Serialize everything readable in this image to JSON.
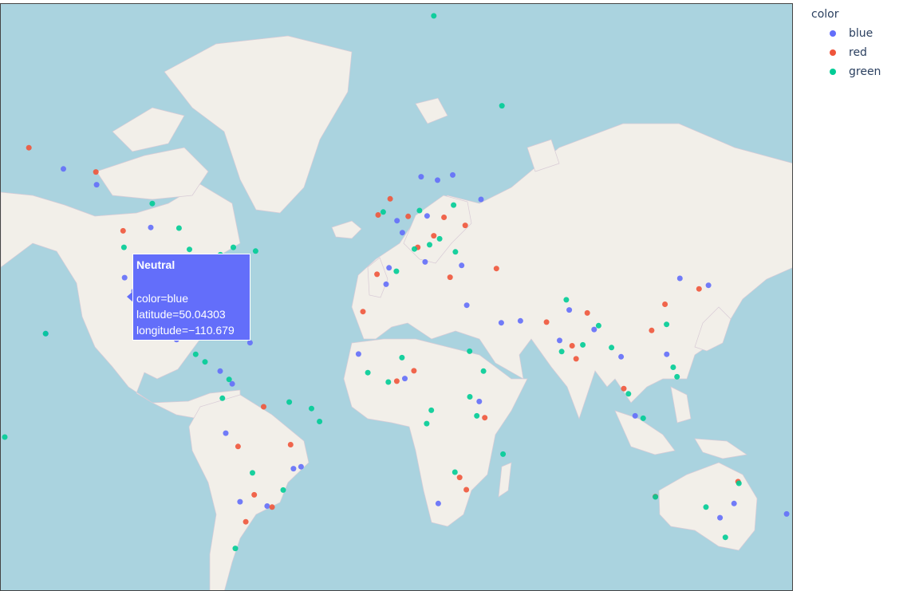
{
  "legend": {
    "title": "color",
    "items": [
      {
        "label": "blue",
        "color": "#636efa"
      },
      {
        "label": "red",
        "color": "#ef553b"
      },
      {
        "label": "green",
        "color": "#00cc96"
      }
    ]
  },
  "tooltip": {
    "title": "Neutral",
    "line1": "color=blue",
    "line2": "latitude=50.04303",
    "line3": "longitude=−110.679"
  },
  "chart_data": {
    "type": "scatter",
    "map_style": "open-street-map",
    "x_name": "longitude",
    "y_name": "latitude",
    "series": [
      {
        "name": "blue",
        "color": "#636efa",
        "points": [
          [
            -110.679,
            50.04
          ],
          [
            -118.2,
            34.1
          ],
          [
            -87.6,
            41.9
          ],
          [
            -74.0,
            40.7
          ],
          [
            -122.4,
            37.8
          ],
          [
            -96.8,
            32.8
          ],
          [
            -80.2,
            25.8
          ],
          [
            -99.1,
            19.4
          ],
          [
            -58.4,
            -34.6
          ],
          [
            -46.6,
            -23.5
          ],
          [
            -70.6,
            -33.4
          ],
          [
            -77.0,
            -12.0
          ],
          [
            -43.2,
            -22.9
          ],
          [
            -0.1,
            51.5
          ],
          [
            2.3,
            48.9
          ],
          [
            13.4,
            52.5
          ],
          [
            12.5,
            41.9
          ],
          [
            -3.7,
            40.4
          ],
          [
            37.6,
            55.8
          ],
          [
            28.9,
            41.0
          ],
          [
            31.2,
            30.0
          ],
          [
            77.2,
            28.6
          ],
          [
            72.9,
            19.1
          ],
          [
            88.4,
            22.6
          ],
          [
            100.5,
            13.8
          ],
          [
            106.8,
            -6.2
          ],
          [
            121.0,
            14.6
          ],
          [
            139.7,
            35.7
          ],
          [
            151.2,
            -33.9
          ],
          [
            144.9,
            -37.8
          ],
          [
            18.4,
            -33.9
          ],
          [
            3.4,
            6.5
          ],
          [
            36.8,
            -1.3
          ],
          [
            -5.0,
            36.0
          ],
          [
            10.7,
            59.9
          ],
          [
            18.1,
            59.3
          ],
          [
            24.9,
            60.2
          ],
          [
            -135.0,
            58.5
          ],
          [
            -149.9,
            61.2
          ],
          [
            174.8,
            -36.8
          ],
          [
            -105.0,
            39.7
          ],
          [
            -112.1,
            33.4
          ],
          [
            -66.1,
            18.4
          ],
          [
            -79.5,
            9.0
          ],
          [
            -74.1,
            4.7
          ],
          [
            -17.4,
            14.7
          ],
          [
            46.7,
            24.7
          ],
          [
            55.3,
            25.3
          ],
          [
            126.9,
            37.6
          ],
          [
            -157.8,
            21.3
          ]
        ]
      },
      {
        "name": "red",
        "color": "#ef553b",
        "points": [
          [
            -123.1,
            49.3
          ],
          [
            -90.1,
            29.9
          ],
          [
            -84.4,
            33.7
          ],
          [
            -71.1,
            42.4
          ],
          [
            -95.4,
            29.8
          ],
          [
            -103.3,
            20.7
          ],
          [
            -60.0,
            -3.1
          ],
          [
            -47.9,
            -15.8
          ],
          [
            -64.2,
            -31.4
          ],
          [
            -71.5,
            -16.4
          ],
          [
            -9.1,
            38.7
          ],
          [
            4.9,
            52.4
          ],
          [
            16.4,
            48.2
          ],
          [
            21.0,
            52.2
          ],
          [
            23.7,
            37.9
          ],
          [
            30.5,
            50.5
          ],
          [
            44.5,
            40.2
          ],
          [
            67.0,
            24.9
          ],
          [
            80.3,
            13.1
          ],
          [
            78.5,
            17.4
          ],
          [
            85.3,
            27.7
          ],
          [
            101.7,
            3.1
          ],
          [
            114.2,
            22.3
          ],
          [
            120.2,
            30.3
          ],
          [
            135.5,
            34.7
          ],
          [
            115.9,
            -31.9
          ],
          [
            153.0,
            -27.5
          ],
          [
            31.0,
            -29.9
          ],
          [
            28.0,
            -26.2
          ],
          [
            7.5,
            9.1
          ],
          [
            -0.2,
            5.6
          ],
          [
            39.3,
            -6.8
          ],
          [
            -165.4,
            64.5
          ],
          [
            -135.3,
            60.7
          ],
          [
            -68.0,
            -38.9
          ],
          [
            -56.2,
            -34.9
          ],
          [
            9.2,
            45.5
          ],
          [
            -8.6,
            52.7
          ],
          [
            -3.2,
            55.9
          ],
          [
            -15.4,
            28.1
          ]
        ]
      },
      {
        "name": "green",
        "color": "#00cc96",
        "points": [
          [
            -117.2,
            32.7
          ],
          [
            -97.5,
            35.5
          ],
          [
            -81.7,
            41.5
          ],
          [
            -86.8,
            36.2
          ],
          [
            -93.3,
            45.0
          ],
          [
            -122.7,
            45.5
          ],
          [
            -79.4,
            43.7
          ],
          [
            -73.6,
            45.5
          ],
          [
            -89.6,
            20.9
          ],
          [
            -86.3,
            12.1
          ],
          [
            -90.5,
            14.6
          ],
          [
            -75.5,
            6.2
          ],
          [
            -78.5,
            -0.2
          ],
          [
            -51.2,
            -30.0
          ],
          [
            -38.5,
            -3.7
          ],
          [
            -34.9,
            -8.1
          ],
          [
            -48.5,
            -1.5
          ],
          [
            -65.0,
            -24.8
          ],
          [
            -72.7,
            -45.6
          ],
          [
            -0.4,
            39.5
          ],
          [
            7.7,
            45.1
          ],
          [
            14.5,
            46.1
          ],
          [
            19.0,
            47.5
          ],
          [
            26.1,
            44.4
          ],
          [
            -6.3,
            53.3
          ],
          [
            10.0,
            53.6
          ],
          [
            25.3,
            54.7
          ],
          [
            32.5,
            15.6
          ],
          [
            38.7,
            9.0
          ],
          [
            32.6,
            0.3
          ],
          [
            35.7,
            -6.2
          ],
          [
            47.5,
            -18.9
          ],
          [
            25.9,
            -24.6
          ],
          [
            -13.2,
            8.5
          ],
          [
            -4.0,
            5.3
          ],
          [
            2.1,
            13.5
          ],
          [
            15.3,
            -4.3
          ],
          [
            13.2,
            -8.8
          ],
          [
            75.9,
            31.6
          ],
          [
            73.8,
            15.5
          ],
          [
            83.3,
            17.7
          ],
          [
            90.4,
            23.8
          ],
          [
            96.2,
            16.8
          ],
          [
            103.8,
            1.3
          ],
          [
            110.4,
            -7.0
          ],
          [
            123.9,
            10.3
          ],
          [
            125.6,
            7.1
          ],
          [
            120.9,
            24.2
          ],
          [
            115.9,
            -32.0
          ],
          [
            147.3,
            -42.9
          ],
          [
            153.4,
            -28.0
          ],
          [
            138.6,
            -34.9
          ],
          [
            -157.9,
            21.3
          ],
          [
            -176.2,
            -13.3
          ],
          [
            47.0,
            70.0
          ],
          [
            -110.0,
            55.0
          ],
          [
            -98.0,
            49.9
          ],
          [
            -63.6,
            44.6
          ],
          [
            16.4,
            78.2
          ]
        ]
      }
    ]
  }
}
